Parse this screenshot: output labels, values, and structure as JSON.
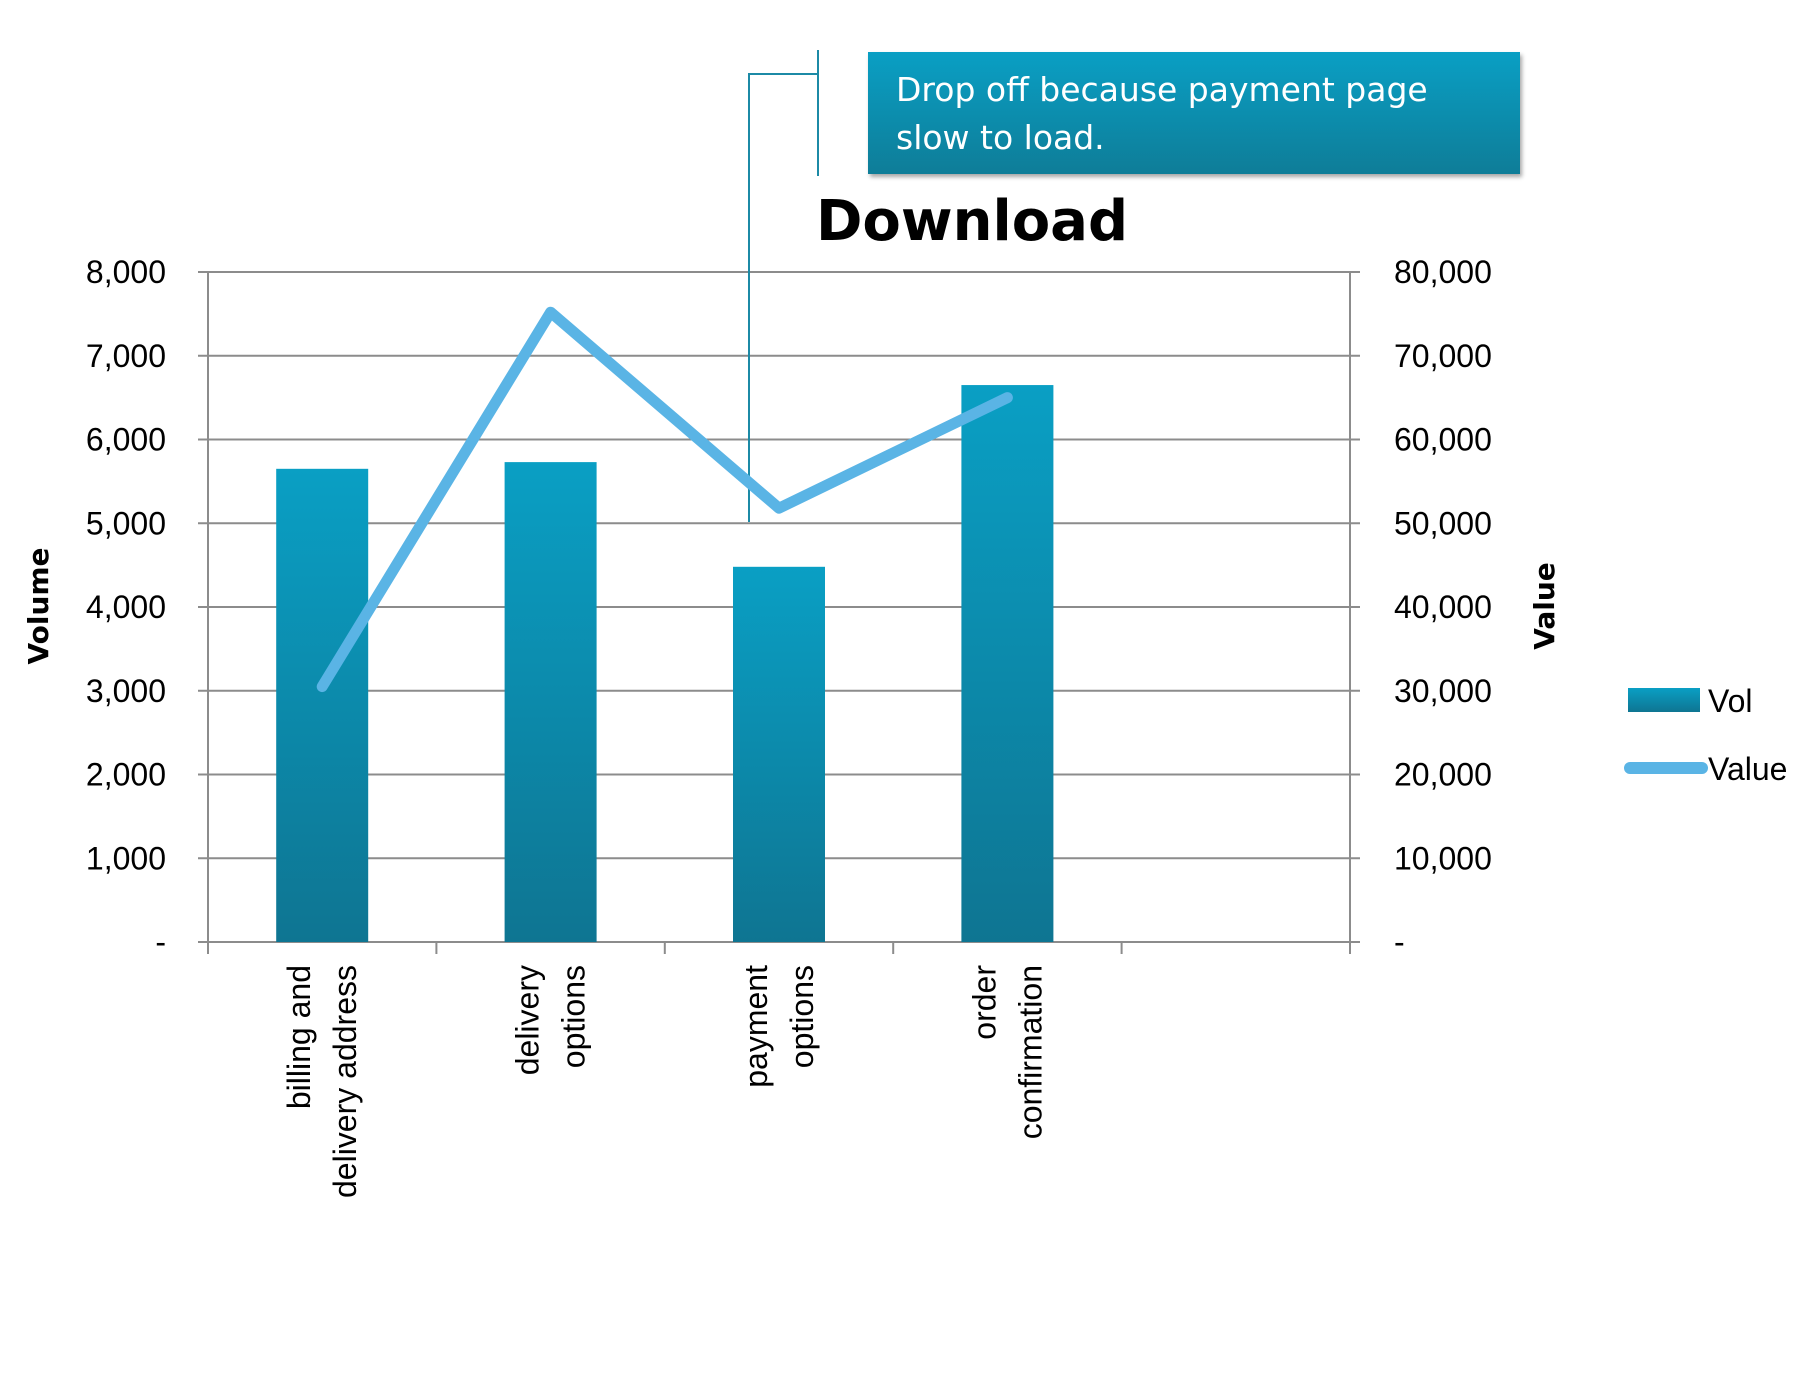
{
  "chart_data": {
    "type": "bar",
    "title": "Download",
    "categories": [
      [
        "billing and",
        "delivery address"
      ],
      [
        "delivery",
        "options"
      ],
      [
        "payment",
        "options"
      ],
      [
        "order",
        "confirmation"
      ]
    ],
    "series": [
      {
        "name": "Vol",
        "type": "bar",
        "axis": "left",
        "values": [
          5650,
          5730,
          4480,
          6650
        ]
      },
      {
        "name": "Value",
        "type": "line",
        "axis": "right",
        "values": [
          30500,
          75200,
          51800,
          65000
        ]
      }
    ],
    "ylabel": "Volume",
    "y2label": "Value",
    "ylim": [
      0,
      8000
    ],
    "y2lim": [
      0,
      80000
    ],
    "yticks": [
      "-",
      "1,000",
      "2,000",
      "3,000",
      "4,000",
      "5,000",
      "6,000",
      "7,000",
      "8,000"
    ],
    "y2ticks": [
      "-",
      "10,000",
      "20,000",
      "30,000",
      "40,000",
      "50,000",
      "60,000",
      "70,000",
      "80,000"
    ],
    "grid": true,
    "legend": "right",
    "annotation": {
      "text": "Drop off because payment page slow to load.",
      "category_index": 2
    },
    "colors": {
      "bar_top": "#0a9fc4",
      "bar_bottom": "#0e7592",
      "line": "#5ab4e5",
      "grid": "#8c8c8c",
      "callout": "#0a8fb2"
    }
  }
}
